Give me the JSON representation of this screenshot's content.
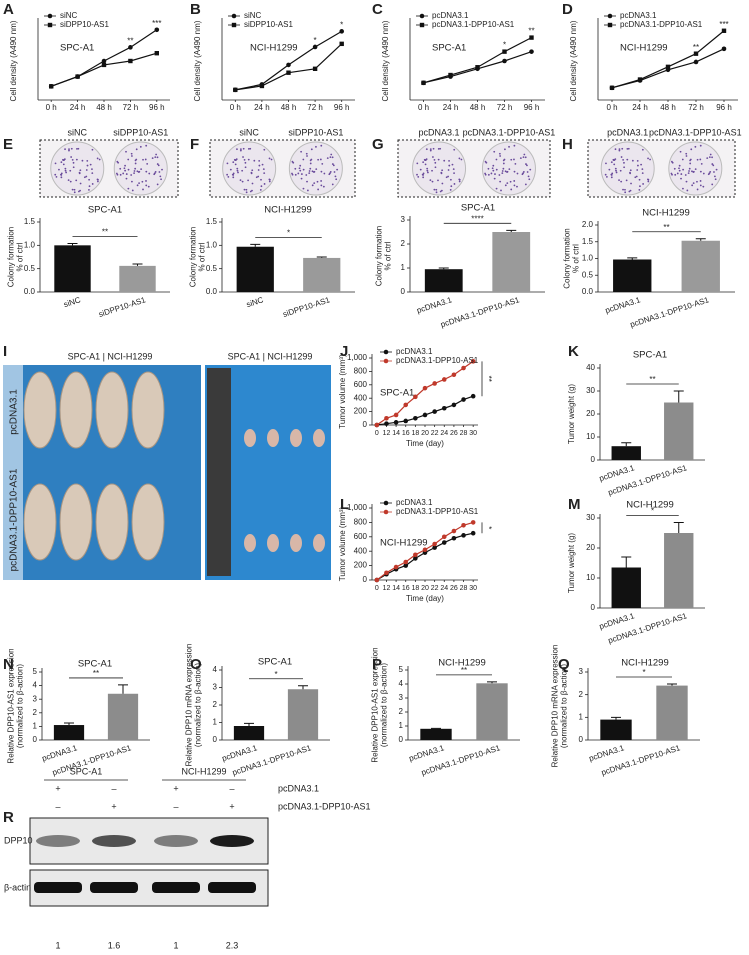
{
  "chart_data": [
    {
      "type": "line",
      "panel": "A",
      "title": "SPC-A1",
      "ylabel": [
        "Cell density (A490 nm)"
      ],
      "categories": [
        "0 h",
        "24 h",
        "48 h",
        "72 h",
        "96 h"
      ],
      "ylim": [
        0,
        0.4
      ],
      "series": [
        {
          "name": "siNC",
          "color": "#111111",
          "marker": "circle",
          "values": [
            0.07,
            0.12,
            0.2,
            0.27,
            0.36
          ]
        },
        {
          "name": "siDPP10-AS1",
          "color": "#111111",
          "marker": "square",
          "values": [
            0.07,
            0.12,
            0.18,
            0.2,
            0.24
          ]
        }
      ],
      "sig": [
        null,
        null,
        null,
        "**",
        "***"
      ]
    },
    {
      "type": "line",
      "panel": "B",
      "title": "NCI-H1299",
      "ylabel": [
        "Cell density (A490 nm)"
      ],
      "categories": [
        "0 h",
        "24 h",
        "48 h",
        "72 h",
        "96 h"
      ],
      "ylim": [
        0,
        1
      ],
      "series": [
        {
          "name": "siNC",
          "color": "#111111",
          "marker": "circle",
          "values": [
            0.13,
            0.2,
            0.45,
            0.68,
            0.88
          ]
        },
        {
          "name": "siDPP10-AS1",
          "color": "#111111",
          "marker": "square",
          "values": [
            0.13,
            0.18,
            0.35,
            0.4,
            0.72
          ]
        }
      ],
      "sig": [
        null,
        null,
        null,
        "*",
        "*"
      ]
    },
    {
      "type": "line",
      "panel": "C",
      "title": "SPC-A1",
      "ylabel": [
        "Cell density (A490 nm)"
      ],
      "categories": [
        "0 h",
        "24 h",
        "48 h",
        "72 h",
        "96 h"
      ],
      "ylim": [
        0,
        2.5
      ],
      "series": [
        {
          "name": "pcDNA3.1",
          "color": "#111111",
          "marker": "circle",
          "values": [
            0.55,
            0.75,
            1.0,
            1.25,
            1.55
          ]
        },
        {
          "name": "pcDNA3.1-DPP10-AS1",
          "color": "#111111",
          "marker": "square",
          "values": [
            0.55,
            0.8,
            1.05,
            1.55,
            2.0
          ]
        }
      ],
      "sig": [
        null,
        null,
        null,
        "*",
        "**"
      ]
    },
    {
      "type": "line",
      "panel": "D",
      "title": "NCI-H1299",
      "ylabel": [
        "Cell density (A490 nm)"
      ],
      "categories": [
        "0 h",
        "24 h",
        "48 h",
        "72 h",
        "96 h"
      ],
      "ylim": [
        0,
        1.6
      ],
      "series": [
        {
          "name": "pcDNA3.1",
          "color": "#111111",
          "marker": "circle",
          "values": [
            0.25,
            0.4,
            0.62,
            0.78,
            1.05
          ]
        },
        {
          "name": "pcDNA3.1-DPP10-AS1",
          "color": "#111111",
          "marker": "square",
          "values": [
            0.25,
            0.42,
            0.68,
            0.95,
            1.42
          ]
        }
      ],
      "sig": [
        null,
        null,
        null,
        "**",
        "***"
      ]
    },
    {
      "type": "bar",
      "panel": "E",
      "title": "SPC-A1",
      "image_labels": [
        "siNC",
        "siDPP10-AS1"
      ],
      "ylabel": [
        "Colony formation",
        "% of ctrl"
      ],
      "categories": [
        "siNC",
        "siDPP10-AS1"
      ],
      "values": [
        1.0,
        0.56
      ],
      "errors": [
        0.04,
        0.04
      ],
      "colors": [
        "#111111",
        "#9a9a9a"
      ],
      "ylim": [
        0,
        1.5
      ],
      "yticks": [
        {
          "value": 0,
          "label": "0.0"
        },
        0.5,
        {
          "value": 1,
          "label": "1.0"
        },
        1.5
      ],
      "sig": "**"
    },
    {
      "type": "bar",
      "panel": "F",
      "title": "NCI-H1299",
      "image_labels": [
        "siNC",
        "siDPP10-AS1"
      ],
      "ylabel": [
        "Colony formation",
        "% of ctrl"
      ],
      "categories": [
        "siNC",
        "siDPP10-AS1"
      ],
      "values": [
        0.97,
        0.73
      ],
      "errors": [
        0.05,
        0.02
      ],
      "colors": [
        "#111111",
        "#9a9a9a"
      ],
      "ylim": [
        0,
        1.5
      ],
      "yticks": [
        {
          "value": 0,
          "label": "0.0"
        },
        0.5,
        {
          "value": 1,
          "label": "1.0"
        },
        1.5
      ],
      "sig": "*"
    },
    {
      "type": "bar",
      "panel": "G",
      "title": "SPC-A1",
      "image_labels": [
        "pcDNA3.1",
        "pcDNA3.1-DPP10-AS1"
      ],
      "ylabel": [
        "Colony formation",
        "% of ctrl"
      ],
      "categories": [
        "pcDNA3.1",
        "pcDNA3.1-DPP10-AS1"
      ],
      "values": [
        0.95,
        2.5
      ],
      "errors": [
        0.05,
        0.07
      ],
      "colors": [
        "#111111",
        "#9a9a9a"
      ],
      "ylim": [
        0,
        3
      ],
      "yticks": [
        0,
        1,
        2,
        3
      ],
      "sig": "****"
    },
    {
      "type": "bar",
      "panel": "H",
      "title": "NCI-H1299",
      "image_labels": [
        "pcDNA3.1",
        "pcDNA3.1-DPP10-AS1"
      ],
      "ylabel": [
        "Colony formation",
        "% of ctrl"
      ],
      "categories": [
        "pcDNA3.1",
        "pcDNA3.1-DPP10-AS1"
      ],
      "values": [
        0.97,
        1.53
      ],
      "errors": [
        0.05,
        0.06
      ],
      "colors": [
        "#111111",
        "#9a9a9a"
      ],
      "ylim": [
        0,
        2
      ],
      "yticks": [
        {
          "value": 0,
          "label": "0.0"
        },
        0.5,
        {
          "value": 1,
          "label": "1.0"
        },
        1.5,
        {
          "value": 2,
          "label": "2.0"
        }
      ],
      "sig": "**"
    },
    {
      "type": "image",
      "panel": "I",
      "headers": [
        "SPC-A1 | NCI-H1299",
        "SPC-A1 | NCI-H1299"
      ],
      "rows": [
        "pcDNA3.1",
        "pcDNA3.1-DPP10-AS1"
      ]
    },
    {
      "type": "line",
      "panel": "J",
      "title": "SPC-A1",
      "ylabel": [
        "Tumor volume (mm³)"
      ],
      "xlabel": "Time (day)",
      "categories": [
        "0",
        "12",
        "14",
        "16",
        "18",
        "20",
        "22",
        "24",
        "26",
        "28",
        "30"
      ],
      "ylim": [
        0,
        1000
      ],
      "yticks": [
        0,
        200,
        400,
        600,
        800,
        {
          "value": 1000,
          "label": "1,000"
        }
      ],
      "series": [
        {
          "name": "pcDNA3.1",
          "color": "#111111",
          "marker": "circle",
          "values": [
            0,
            20,
            40,
            60,
            100,
            150,
            200,
            250,
            300,
            380,
            430
          ]
        },
        {
          "name": "pcDNA3.1-DPP10-AS1",
          "color": "#c0392b",
          "marker": "circle",
          "values": [
            0,
            100,
            150,
            300,
            420,
            550,
            620,
            680,
            750,
            850,
            950
          ]
        }
      ],
      "end_sig": "**"
    },
    {
      "type": "bar",
      "panel": "K",
      "title": "SPC-A1",
      "ylabel": [
        "Tumor weight (g)"
      ],
      "categories": [
        "pcDNA3.1",
        "pcDNA3.1-DPP10-AS1"
      ],
      "values": [
        6,
        25
      ],
      "errors": [
        1.5,
        5
      ],
      "colors": [
        "#111111",
        "#8c8c8c"
      ],
      "ylim": [
        0,
        40
      ],
      "yticks": [
        0,
        10,
        20,
        30,
        40
      ],
      "sig": "**"
    },
    {
      "type": "line",
      "panel": "L",
      "title": "NCI-H1299",
      "ylabel": [
        "Tumor volume (mm³)"
      ],
      "xlabel": "Time (day)",
      "categories": [
        "0",
        "12",
        "14",
        "16",
        "18",
        "20",
        "22",
        "24",
        "26",
        "28",
        "30"
      ],
      "ylim": [
        0,
        1000
      ],
      "yticks": [
        0,
        200,
        400,
        600,
        800,
        {
          "value": 1000,
          "label": "1,000"
        }
      ],
      "series": [
        {
          "name": "pcDNA3.1",
          "color": "#111111",
          "marker": "circle",
          "values": [
            0,
            80,
            150,
            200,
            300,
            380,
            450,
            520,
            580,
            620,
            650
          ]
        },
        {
          "name": "pcDNA3.1-DPP10-AS1",
          "color": "#c0392b",
          "marker": "circle",
          "values": [
            0,
            100,
            180,
            250,
            350,
            420,
            500,
            600,
            680,
            760,
            800
          ]
        }
      ],
      "end_sig": "*"
    },
    {
      "type": "bar",
      "panel": "M",
      "title": "NCI-H1299",
      "ylabel": [
        "Tumor weight (g)"
      ],
      "categories": [
        "pcDNA3.1",
        "pcDNA3.1-DPP10-AS1"
      ],
      "values": [
        13.5,
        25
      ],
      "errors": [
        3.5,
        3.5
      ],
      "colors": [
        "#111111",
        "#8c8c8c"
      ],
      "ylim": [
        0,
        30
      ],
      "yticks": [
        0,
        10,
        20,
        30
      ],
      "sig": "*"
    },
    {
      "type": "bar",
      "panel": "N",
      "title": "SPC-A1",
      "ylabel": [
        "Relative DPP10-AS1 expression",
        "(normalized to β-action)"
      ],
      "categories": [
        "pcDNA3.1",
        "pcDNA3.1-DPP10-AS1"
      ],
      "values": [
        1.1,
        3.4
      ],
      "errors": [
        0.15,
        0.65
      ],
      "colors": [
        "#111111",
        "#8c8c8c"
      ],
      "ylim": [
        0,
        5
      ],
      "yticks": [
        0,
        1,
        2,
        3,
        4,
        5
      ],
      "sig": "**"
    },
    {
      "type": "bar",
      "panel": "O",
      "title": "SPC-A1",
      "ylabel": [
        "Relative DPP10 mRNA expression",
        "(normalized to β-action)"
      ],
      "categories": [
        "pcDNA3.1",
        "pcDNA3.1-DPP10-AS1"
      ],
      "values": [
        0.8,
        2.9
      ],
      "errors": [
        0.15,
        0.2
      ],
      "colors": [
        "#111111",
        "#8c8c8c"
      ],
      "ylim": [
        0,
        4
      ],
      "yticks": [
        0,
        1,
        2,
        3,
        4
      ],
      "sig": "*"
    },
    {
      "type": "bar",
      "panel": "P",
      "title": "NCI-H1299",
      "ylabel": [
        "Relative DPP10-AS1 expression",
        "(normalized to β-action)"
      ],
      "categories": [
        "pcDNA3.1",
        "pcDNA3.1-DPP10-AS1"
      ],
      "values": [
        0.8,
        4.05
      ],
      "errors": [
        0.03,
        0.1
      ],
      "colors": [
        "#111111",
        "#8c8c8c"
      ],
      "ylim": [
        0,
        5
      ],
      "yticks": [
        0,
        1,
        2,
        3,
        4,
        5
      ],
      "sig": "**"
    },
    {
      "type": "bar",
      "panel": "Q",
      "title": "NCI-H1299",
      "ylabel": [
        "Relative DPP10 mRNA expression",
        "(normalized to β-action)"
      ],
      "categories": [
        "pcDNA3.1",
        "pcDNA3.1-DPP10-AS1"
      ],
      "values": [
        0.9,
        2.4
      ],
      "errors": [
        0.1,
        0.07
      ],
      "colors": [
        "#111111",
        "#8c8c8c"
      ],
      "ylim": [
        0,
        3
      ],
      "yticks": [
        0,
        1,
        2,
        3
      ],
      "sig": "*"
    },
    {
      "type": "blot",
      "panel": "R",
      "groups": [
        "SPC-A1",
        "NCI-H1299"
      ],
      "conditions": [
        {
          "name": "pcDNA3.1",
          "signs": [
            "+",
            "–",
            "+",
            "–"
          ]
        },
        {
          "name": "pcDNA3.1-DPP10-AS1",
          "signs": [
            "–",
            "+",
            "–",
            "+"
          ]
        }
      ],
      "blots": [
        "DPP10",
        "β-actin"
      ],
      "values": [
        1,
        1.6,
        1,
        2.3
      ]
    }
  ]
}
